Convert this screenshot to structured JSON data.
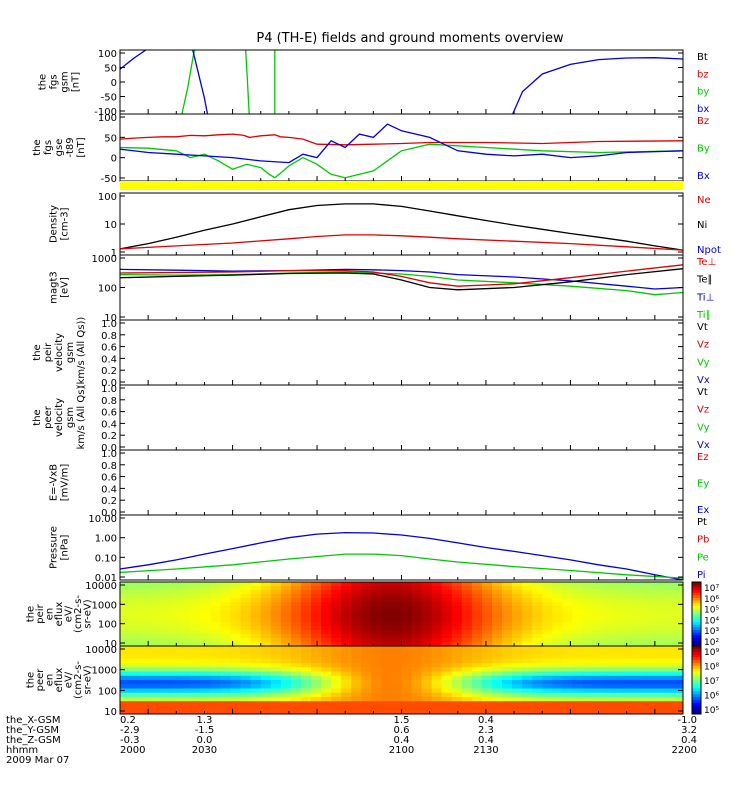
{
  "title": "P4 (TH-E) fields and ground moments overview",
  "colors": {
    "black": "#000000",
    "red": "#e00000",
    "green": "#00c800",
    "blue": "#0000e0",
    "yellow": "#ffff00"
  },
  "chart_data": [
    {
      "id": "fgs_gsm",
      "type": "line",
      "ylabel": [
        "the",
        "fgs",
        "gsm",
        "[nT]"
      ],
      "yticks": [
        "100",
        "50",
        "0",
        "-50",
        "-100"
      ],
      "ylim": [
        -100,
        100
      ],
      "legend": [
        {
          "label": "Bt",
          "color": "#000000"
        },
        {
          "label": "bz",
          "color": "#e00000"
        },
        {
          "label": "by",
          "color": "#00c800"
        },
        {
          "label": "bx",
          "color": "#0000e0"
        }
      ],
      "series": [
        {
          "name": "by",
          "color": "#00c800",
          "x": [
            2020.0,
            2022.0,
            2024.0,
            2026.0,
            2027.0
          ],
          "y": [
            -120,
            -100,
            -20,
            80,
            120
          ]
        },
        {
          "name": "by",
          "color": "#00c800",
          "x": [
            2044.5,
            2045.3,
            2046.0
          ],
          "y": [
            120,
            0,
            -120
          ]
        },
        {
          "name": "by",
          "color": "#00c800",
          "x": [
            2055.0,
            2055.0
          ],
          "y": [
            120,
            -120
          ]
        },
        {
          "name": "bx",
          "color": "#0000e0",
          "x": [
            2000.0,
            2005.0,
            2010.0,
            2014.0
          ],
          "y": [
            40,
            75,
            105,
            125
          ]
        },
        {
          "name": "bx",
          "color": "#0000e0",
          "x": [
            2025.0,
            2027.5,
            2030.0,
            2031.5
          ],
          "y": [
            130,
            40,
            -50,
            -120
          ]
        },
        {
          "name": "bx",
          "color": "#0000e0",
          "x": [
            2139.5,
            2143.0,
            2150.0,
            2160.0,
            2170.0,
            2180.0,
            2190.0,
            2200.0
          ],
          "y": [
            -100,
            -30,
            25,
            55,
            70,
            75,
            76,
            72
          ]
        }
      ]
    },
    {
      "id": "fgs_gse",
      "type": "line",
      "ylabel": [
        "the",
        "fgs",
        "gse",
        "-t89",
        "[nT]"
      ],
      "yticks": [
        "100",
        "50",
        "0",
        "-50"
      ],
      "ylim": [
        -90,
        110
      ],
      "legend": [
        {
          "label": "Bz",
          "color": "#e00000"
        },
        {
          "label": "By",
          "color": "#00c800"
        },
        {
          "label": "Bx",
          "color": "#0000e0"
        }
      ],
      "series": [
        {
          "name": "Bz",
          "color": "#e00000",
          "x": [
            2000,
            2005,
            2010,
            2015,
            2020,
            2025,
            2030,
            2035,
            2040,
            2044,
            2046,
            2050,
            2055,
            2057,
            2060,
            2065,
            2070,
            2080,
            2090,
            2100,
            2110,
            2130,
            2150,
            2170,
            2200
          ],
          "y": [
            35,
            38,
            40,
            42,
            42,
            46,
            45,
            48,
            50,
            46,
            40,
            45,
            48,
            42,
            40,
            35,
            20,
            18,
            20,
            22,
            25,
            25,
            22,
            28,
            30
          ]
        },
        {
          "name": "By",
          "color": "#00c800",
          "x": [
            2000,
            2010,
            2020,
            2025,
            2030,
            2035,
            2040,
            2045,
            2050,
            2053,
            2055,
            2058,
            2060,
            2065,
            2070,
            2075,
            2080,
            2090,
            2100,
            2110,
            2130,
            2150,
            2170,
            2200
          ],
          "y": [
            10,
            8,
            0,
            -20,
            -10,
            -30,
            -55,
            -40,
            -50,
            -70,
            -80,
            -60,
            -45,
            -20,
            -40,
            -70,
            -80,
            -60,
            0,
            20,
            10,
            0,
            -5,
            0
          ]
        },
        {
          "name": "Bx",
          "color": "#0000e0",
          "x": [
            2000,
            2010,
            2020,
            2030,
            2040,
            2050,
            2060,
            2065,
            2070,
            2075,
            2080,
            2085,
            2090,
            2095,
            2100,
            2110,
            2120,
            2130,
            2140,
            2150,
            2160,
            2170,
            2180,
            2200
          ],
          "y": [
            5,
            -5,
            -10,
            -15,
            -20,
            -30,
            -35,
            -10,
            -20,
            30,
            10,
            50,
            40,
            80,
            60,
            40,
            0,
            -10,
            -15,
            -10,
            -20,
            -15,
            -5,
            0
          ]
        }
      ]
    },
    {
      "id": "density",
      "type": "line",
      "ylabel": [
        "Density",
        "[cm-3]"
      ],
      "yscale": "log",
      "yticks": [
        "100",
        "10",
        "1"
      ],
      "ylim": [
        0.5,
        200
      ],
      "legend": [
        {
          "label": "Ne",
          "color": "#e00000"
        },
        {
          "label": "Ni",
          "color": "#000000"
        },
        {
          "label": "Npot",
          "color": "#0000e0"
        }
      ],
      "series": [
        {
          "name": "Ni",
          "color": "#000000",
          "x": [
            2000,
            2010,
            2020,
            2030,
            2040,
            2050,
            2060,
            2070,
            2080,
            2090,
            2100,
            2110,
            2120,
            2130,
            2140,
            2150,
            2160,
            2170,
            2180,
            2190,
            2200
          ],
          "y": [
            0.9,
            1.5,
            2.8,
            5.5,
            10,
            20,
            40,
            60,
            70,
            70,
            55,
            35,
            22,
            14,
            9,
            6,
            4,
            2.8,
            1.9,
            1.2,
            0.8
          ]
        },
        {
          "name": "Ne",
          "color": "#e00000",
          "x": [
            2000,
            2020,
            2040,
            2060,
            2070,
            2080,
            2090,
            2100,
            2110,
            2120,
            2140,
            2160,
            2180,
            2200
          ],
          "y": [
            0.9,
            1.2,
            1.6,
            2.4,
            3.0,
            3.5,
            3.5,
            3.2,
            2.8,
            2.4,
            1.9,
            1.5,
            1.1,
            0.8
          ]
        }
      ]
    },
    {
      "id": "temperature",
      "type": "line",
      "ylabel": [
        "magt3",
        "[eV]"
      ],
      "yscale": "log",
      "yticks": [
        "1000",
        "100",
        "10"
      ],
      "ylim": [
        10,
        1000
      ],
      "legend": [
        {
          "label": "Te⊥",
          "color": "#e00000"
        },
        {
          "label": "Te∥",
          "color": "#000000"
        },
        {
          "label": "Ti⊥",
          "color": "#0000e0"
        },
        {
          "label": "Ti∥",
          "color": "#00c800"
        }
      ],
      "series": [
        {
          "name": "Ti⊥",
          "color": "#0000e0",
          "x": [
            2000,
            2020,
            2040,
            2060,
            2080,
            2090,
            2100,
            2110,
            2120,
            2140,
            2160,
            2180,
            2190,
            2200
          ],
          "y": [
            360,
            340,
            320,
            330,
            360,
            350,
            330,
            300,
            250,
            210,
            160,
            110,
            90,
            100
          ]
        },
        {
          "name": "Ti∥",
          "color": "#00c800",
          "x": [
            2000,
            2020,
            2040,
            2060,
            2080,
            2100,
            2110,
            2120,
            2140,
            2160,
            2180,
            2190,
            2200
          ],
          "y": [
            250,
            240,
            250,
            280,
            300,
            260,
            220,
            170,
            140,
            110,
            80,
            60,
            70
          ]
        },
        {
          "name": "Te⊥",
          "color": "#e00000",
          "x": [
            2000,
            2020,
            2040,
            2060,
            2080,
            2090,
            2100,
            2110,
            2120,
            2140,
            2160,
            2180,
            2200
          ],
          "y": [
            280,
            290,
            300,
            330,
            330,
            300,
            220,
            140,
            110,
            130,
            200,
            320,
            500
          ]
        },
        {
          "name": "Te∥",
          "color": "#000000",
          "x": [
            2000,
            2020,
            2040,
            2060,
            2080,
            2090,
            2100,
            2110,
            2120,
            2140,
            2160,
            2180,
            2200
          ],
          "y": [
            200,
            220,
            240,
            270,
            280,
            260,
            170,
            100,
            85,
            100,
            150,
            250,
            380
          ]
        }
      ]
    },
    {
      "id": "peir_velocity",
      "type": "line",
      "ylabel": [
        "the",
        "peir",
        "velocity",
        "gsm",
        "(km/s (All Qs))"
      ],
      "yticks": [
        "1.0",
        "0.8",
        "0.6",
        "0.4",
        "0.2",
        "0.0"
      ],
      "ylim": [
        0,
        1
      ],
      "legend": [
        {
          "label": "Vt",
          "color": "#000000"
        },
        {
          "label": "Vz",
          "color": "#e00000"
        },
        {
          "label": "Vy",
          "color": "#00c800"
        },
        {
          "label": "Vx",
          "color": "#0000e0"
        }
      ],
      "series": []
    },
    {
      "id": "peer_velocity",
      "type": "line",
      "ylabel": [
        "the",
        "peer",
        "velocity",
        "gsm",
        "km/s (All Qs)"
      ],
      "yticks": [
        "1.0",
        "0.8",
        "0.6",
        "0.4",
        "0.2",
        "0.0"
      ],
      "ylim": [
        0,
        1
      ],
      "legend": [
        {
          "label": "Vt",
          "color": "#000000"
        },
        {
          "label": "Vz",
          "color": "#e00000"
        },
        {
          "label": "Vy",
          "color": "#00c800"
        },
        {
          "label": "Vx",
          "color": "#0000e0"
        }
      ],
      "series": []
    },
    {
      "id": "efield",
      "type": "line",
      "ylabel": [
        "E=-VxB",
        "[mV/m]"
      ],
      "yticks": [
        "1.0",
        "0.8",
        "0.6",
        "0.4",
        "0.2",
        "0.0"
      ],
      "ylim": [
        0,
        1
      ],
      "legend": [
        {
          "label": "Ez",
          "color": "#e00000"
        },
        {
          "label": "Ey",
          "color": "#00c800"
        },
        {
          "label": "Ex",
          "color": "#0000e0"
        }
      ],
      "series": []
    },
    {
      "id": "pressure",
      "type": "line",
      "ylabel": [
        "Pressure",
        "[nPa]"
      ],
      "yscale": "log",
      "yticks": [
        "10.00",
        "1.00",
        "0.10",
        "0.01"
      ],
      "ylim": [
        0.008,
        20
      ],
      "legend": [
        {
          "label": "Pt",
          "color": "#000000"
        },
        {
          "label": "Pb",
          "color": "#e00000"
        },
        {
          "label": "Pe",
          "color": "#00c800"
        },
        {
          "label": "Pi",
          "color": "#0000e0"
        }
      ],
      "series": [
        {
          "name": "Pi",
          "color": "#0000e0",
          "x": [
            2000,
            2010,
            2020,
            2030,
            2040,
            2050,
            2060,
            2070,
            2080,
            2090,
            2100,
            2110,
            2120,
            2130,
            2140,
            2150,
            2160,
            2170,
            2180,
            2190,
            2200
          ],
          "y": [
            0.03,
            0.05,
            0.09,
            0.18,
            0.35,
            0.7,
            1.3,
            2.0,
            2.4,
            2.3,
            1.8,
            1.2,
            0.7,
            0.4,
            0.25,
            0.15,
            0.09,
            0.05,
            0.03,
            0.015,
            0.008
          ]
        },
        {
          "name": "Pe",
          "color": "#00c800",
          "x": [
            2000,
            2020,
            2040,
            2060,
            2080,
            2090,
            2100,
            2110,
            2120,
            2140,
            2160,
            2180,
            2200
          ],
          "y": [
            0.02,
            0.03,
            0.05,
            0.1,
            0.18,
            0.18,
            0.15,
            0.1,
            0.07,
            0.04,
            0.025,
            0.015,
            0.01
          ]
        }
      ]
    },
    {
      "id": "peir_spec",
      "type": "heatmap",
      "ylabel": [
        "the",
        "peir",
        "en",
        "eflux",
        "eV/",
        "(cm2-s-",
        "sr-eV)"
      ],
      "yscale": "log",
      "yticks": [
        "10000",
        "1000",
        "100",
        "10"
      ],
      "colorbar_labels": [
        "10⁷",
        "10⁶",
        "10⁵",
        "10⁴",
        "10³",
        "10²"
      ]
    },
    {
      "id": "peer_spec",
      "type": "heatmap",
      "ylabel": [
        "the",
        "peer",
        "en",
        "eflux",
        "eV/",
        "(cm2-s-",
        "sr-eV)"
      ],
      "yscale": "log",
      "yticks": [
        "10000",
        "1000",
        "100",
        "10"
      ],
      "colorbar_labels": [
        "10⁹",
        "10⁸",
        "10⁷",
        "10⁶",
        "10⁵"
      ]
    }
  ],
  "xaxis": {
    "xlim": [
      2000,
      2200
    ],
    "row_labels": [
      "the_X-GSM",
      "the_Y-GSM",
      "the_Z-GSM",
      "hhmm",
      "2009 Mar 07"
    ],
    "ticks": [
      {
        "x": 2000,
        "values": [
          "0.2",
          "-2.9",
          "-0.3",
          "2000"
        ]
      },
      {
        "x": 2030,
        "values": [
          "1.3",
          "-1.5",
          "0.0",
          "2030"
        ]
      },
      {
        "x": 2100,
        "values": [
          "1.5",
          "0.6",
          "0.4",
          "2100"
        ]
      },
      {
        "x": 2130,
        "values": [
          "0.4",
          "2.3",
          "0.4",
          "2130"
        ]
      },
      {
        "x": 2200,
        "values": [
          "-1.0",
          "3.2",
          "0.4",
          "2200"
        ]
      }
    ]
  }
}
